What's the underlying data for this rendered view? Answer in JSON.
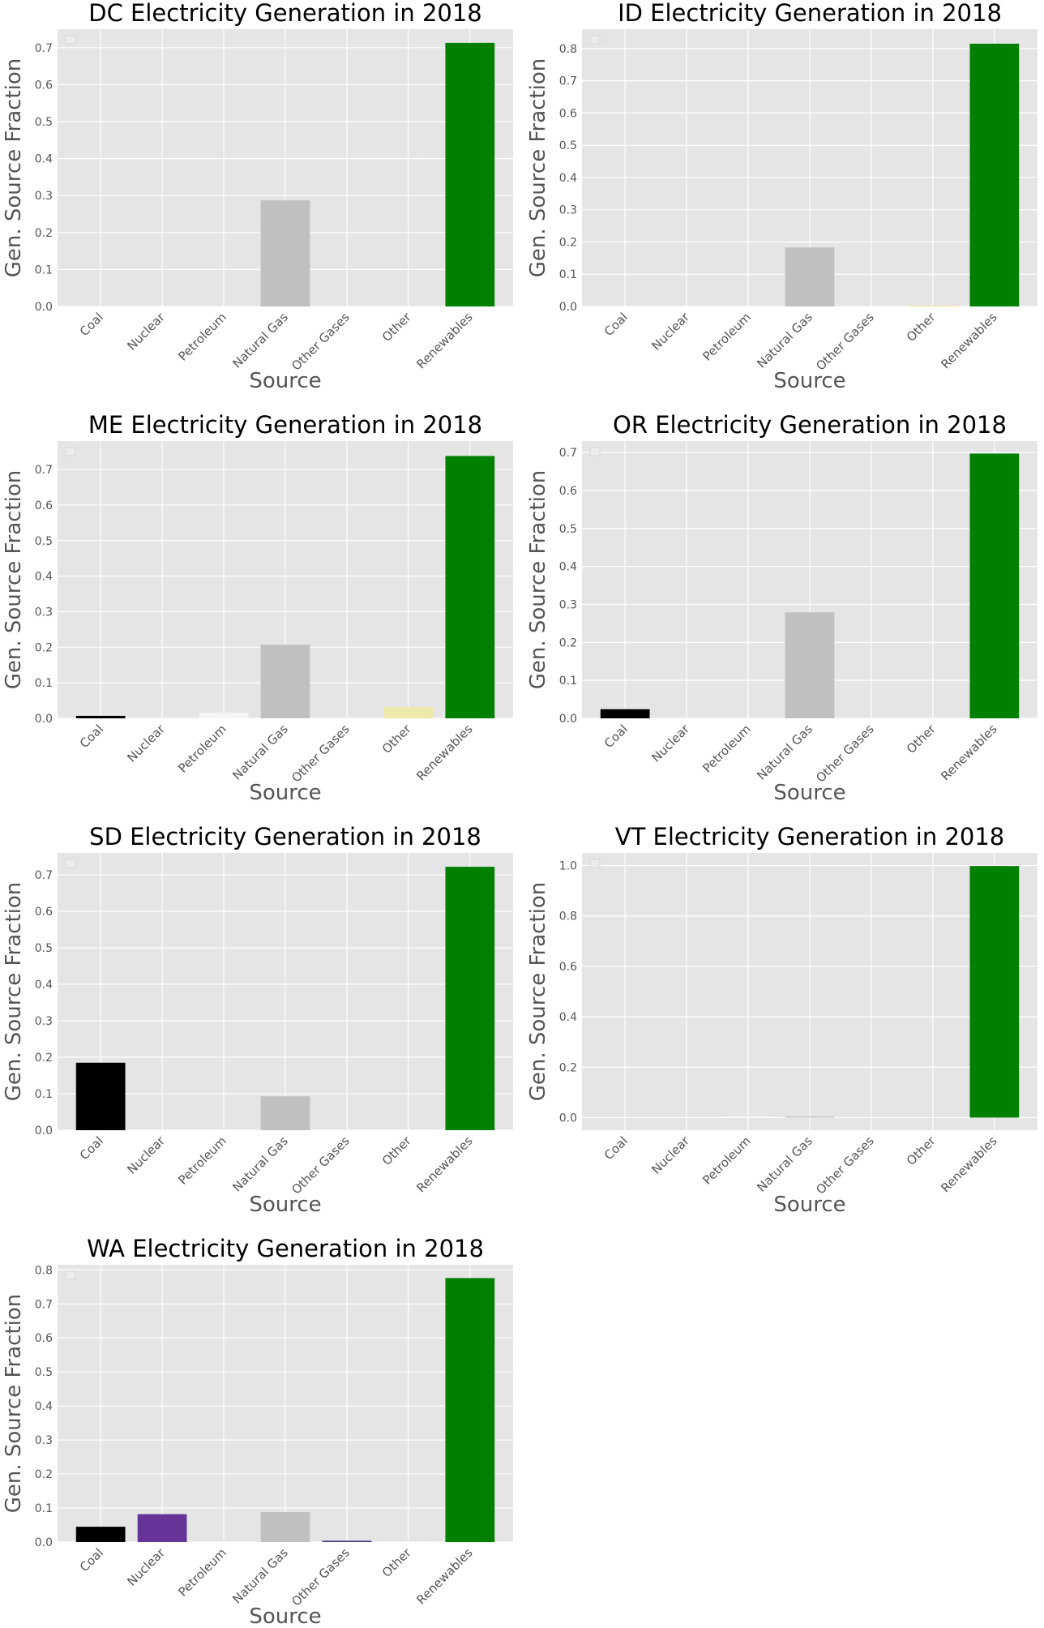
{
  "colors": {
    "background": "#e5e5e5",
    "grid": "#ffffff",
    "Coal": "#000000",
    "Nuclear": "#663399",
    "Petroleum": "#f5f5f5",
    "Natural Gas": "#c0c0c0",
    "Other Gases": "#483d8b",
    "Other": "#eee8aa",
    "Renewables": "#008000"
  },
  "chart_data": [
    {
      "type": "bar",
      "title": "DC Electricity Generation in 2018",
      "xlabel": "Source",
      "ylabel": "Gen. Source Fraction",
      "categories": [
        "Coal",
        "Nuclear",
        "Petroleum",
        "Natural Gas",
        "Other Gases",
        "Other",
        "Renewables"
      ],
      "values": [
        0,
        0,
        0,
        0.287,
        0,
        0,
        0.713
      ],
      "ylim": [
        0,
        0.75
      ],
      "yticks": [
        "0.0",
        "0.1",
        "0.2",
        "0.3",
        "0.4",
        "0.5",
        "0.6",
        "0.7"
      ],
      "grid": true
    },
    {
      "type": "bar",
      "title": "ID Electricity Generation in 2018",
      "xlabel": "Source",
      "ylabel": "Gen. Source Fraction",
      "categories": [
        "Coal",
        "Nuclear",
        "Petroleum",
        "Natural Gas",
        "Other Gases",
        "Other",
        "Renewables"
      ],
      "values": [
        0,
        0,
        0,
        0.183,
        0,
        0.002,
        0.815
      ],
      "ylim": [
        0,
        0.86
      ],
      "yticks": [
        "0.0",
        "0.1",
        "0.2",
        "0.3",
        "0.4",
        "0.5",
        "0.6",
        "0.7",
        "0.8"
      ],
      "grid": true
    },
    {
      "type": "bar",
      "title": "ME Electricity Generation in 2018",
      "xlabel": "Source",
      "ylabel": "Gen. Source Fraction",
      "categories": [
        "Coal",
        "Nuclear",
        "Petroleum",
        "Natural Gas",
        "Other Gases",
        "Other",
        "Renewables"
      ],
      "values": [
        0.007,
        0,
        0.016,
        0.207,
        0,
        0.032,
        0.738
      ],
      "ylim": [
        0,
        0.78
      ],
      "yticks": [
        "0.0",
        "0.1",
        "0.2",
        "0.3",
        "0.4",
        "0.5",
        "0.6",
        "0.7"
      ],
      "grid": true
    },
    {
      "type": "bar",
      "title": "OR Electricity Generation in 2018",
      "xlabel": "Source",
      "ylabel": "Gen. Source Fraction",
      "categories": [
        "Coal",
        "Nuclear",
        "Petroleum",
        "Natural Gas",
        "Other Gases",
        "Other",
        "Renewables"
      ],
      "values": [
        0.024,
        0,
        0,
        0.279,
        0,
        0,
        0.697
      ],
      "ylim": [
        0,
        0.73
      ],
      "yticks": [
        "0.0",
        "0.1",
        "0.2",
        "0.3",
        "0.4",
        "0.5",
        "0.6",
        "0.7"
      ],
      "grid": true
    },
    {
      "type": "bar",
      "title": "SD Electricity Generation in 2018",
      "xlabel": "Source",
      "ylabel": "Gen. Source Fraction",
      "categories": [
        "Coal",
        "Nuclear",
        "Petroleum",
        "Natural Gas",
        "Other Gases",
        "Other",
        "Renewables"
      ],
      "values": [
        0.185,
        0,
        0,
        0.093,
        0,
        0,
        0.722
      ],
      "ylim": [
        0,
        0.76
      ],
      "yticks": [
        "0.0",
        "0.1",
        "0.2",
        "0.3",
        "0.4",
        "0.5",
        "0.6",
        "0.7"
      ],
      "grid": true
    },
    {
      "type": "bar",
      "title": "VT Electricity Generation in 2018",
      "xlabel": "Source",
      "ylabel": "Gen. Source Fraction",
      "categories": [
        "Coal",
        "Nuclear",
        "Petroleum",
        "Natural Gas",
        "Other Gases",
        "Other",
        "Renewables"
      ],
      "values": [
        0,
        0,
        0.001,
        0.001,
        0,
        0,
        0.998
      ],
      "ylim": [
        -0.05,
        1.05
      ],
      "yticks": [
        "0.0",
        "0.2",
        "0.4",
        "0.6",
        "0.8",
        "1.0"
      ],
      "grid": true
    },
    {
      "type": "bar",
      "title": "WA Electricity Generation in 2018",
      "xlabel": "Source",
      "ylabel": "Gen. Source Fraction",
      "categories": [
        "Coal",
        "Nuclear",
        "Petroleum",
        "Natural Gas",
        "Other Gases",
        "Other",
        "Renewables"
      ],
      "values": [
        0.045,
        0.082,
        0,
        0.088,
        0.004,
        0,
        0.776
      ],
      "ylim": [
        0,
        0.815
      ],
      "yticks": [
        "0.0",
        "0.1",
        "0.2",
        "0.3",
        "0.4",
        "0.5",
        "0.6",
        "0.7",
        "0.8"
      ],
      "grid": true
    }
  ]
}
